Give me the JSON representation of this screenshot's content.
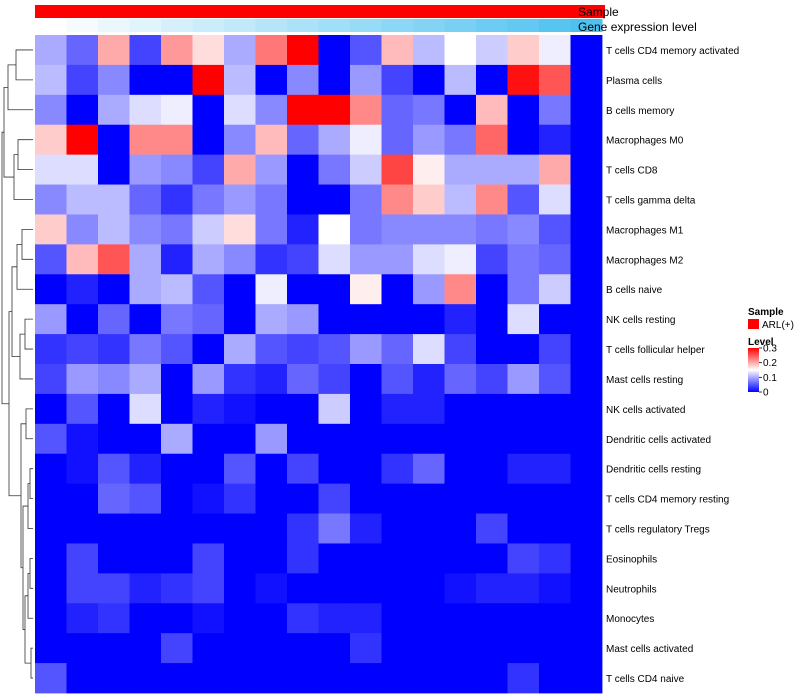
{
  "chart_data": {
    "type": "heatmap",
    "annotation_tracks": [
      {
        "name": "Sample",
        "colors_hint": "red track",
        "legend_title": "Sample",
        "legend_item": "ARL(+)",
        "color": "#ff0000"
      },
      {
        "name": "Gene expression level",
        "color_from": "#ffffff",
        "color_to": "#4ec1f0"
      }
    ],
    "legend": {
      "title": "Level",
      "ticks": [
        "0.3",
        "0.2",
        "0.1",
        "0"
      ],
      "tick_values": [
        0.3,
        0.2,
        0.1,
        0
      ],
      "min": 0,
      "max": 0.3,
      "colors": {
        "low": "#0000ff",
        "mid": "#ffffff",
        "high": "#ff0000"
      }
    },
    "rows": [
      "T cells CD4 memory activated",
      "Plasma cells",
      "B cells memory",
      "Macrophages M0",
      "T cells CD8",
      "T cells gamma delta",
      "Macrophages M1",
      "Macrophages M2",
      "B cells naive",
      "NK cells resting",
      "T cells follicular helper",
      "Mast cells resting",
      "NK cells activated",
      "Dendritic cells activated",
      "Dendritic cells resting",
      "T cells CD4 memory resting",
      "T cells regulatory  Tregs",
      "Eosinophils",
      "Neutrophils",
      "Monocytes",
      "Mast cells activated",
      "T cells CD4 naive"
    ],
    "n_samples": 18,
    "values": [
      [
        0.1,
        0.06,
        0.2,
        0.04,
        0.21,
        0.17,
        0.1,
        0.23,
        0.3,
        0.0,
        0.05,
        0.19,
        0.11,
        0.15,
        0.12,
        0.18,
        0.14,
        0.0
      ],
      [
        0.11,
        0.04,
        0.08,
        0.0,
        0.0,
        0.3,
        0.11,
        0.0,
        0.08,
        0.0,
        0.09,
        0.04,
        0.0,
        0.11,
        0.0,
        0.29,
        0.25,
        0.0
      ],
      [
        0.08,
        0.0,
        0.1,
        0.13,
        0.14,
        0.0,
        0.13,
        0.08,
        0.3,
        0.3,
        0.22,
        0.06,
        0.07,
        0.0,
        0.19,
        0.0,
        0.07,
        0.0
      ],
      [
        0.18,
        0.3,
        0.0,
        0.22,
        0.22,
        0.0,
        0.08,
        0.19,
        0.06,
        0.1,
        0.14,
        0.06,
        0.09,
        0.07,
        0.24,
        0.0,
        0.02,
        0.0
      ],
      [
        0.13,
        0.13,
        0.0,
        0.09,
        0.08,
        0.04,
        0.2,
        0.09,
        0.0,
        0.07,
        0.12,
        0.26,
        0.16,
        0.1,
        0.1,
        0.1,
        0.2,
        0.0
      ],
      [
        0.08,
        0.11,
        0.11,
        0.06,
        0.03,
        0.07,
        0.09,
        0.07,
        0.0,
        0.0,
        0.07,
        0.22,
        0.18,
        0.11,
        0.22,
        0.05,
        0.13,
        0.0
      ],
      [
        0.18,
        0.08,
        0.11,
        0.08,
        0.07,
        0.12,
        0.17,
        0.07,
        0.02,
        0.15,
        0.07,
        0.08,
        0.08,
        0.08,
        0.07,
        0.08,
        0.05,
        0.0
      ],
      [
        0.05,
        0.19,
        0.25,
        0.1,
        0.02,
        0.1,
        0.08,
        0.03,
        0.04,
        0.13,
        0.09,
        0.09,
        0.13,
        0.14,
        0.04,
        0.07,
        0.06,
        0.0
      ],
      [
        0.0,
        0.02,
        0.0,
        0.1,
        0.11,
        0.05,
        0.0,
        0.14,
        0.0,
        0.0,
        0.16,
        0.0,
        0.09,
        0.22,
        0.0,
        0.07,
        0.12,
        0.0
      ],
      [
        0.09,
        0.0,
        0.06,
        0.0,
        0.07,
        0.06,
        0.0,
        0.1,
        0.09,
        0.0,
        0.0,
        0.0,
        0.0,
        0.02,
        0.0,
        0.13,
        0.0,
        0.0
      ],
      [
        0.03,
        0.04,
        0.03,
        0.07,
        0.05,
        0.0,
        0.1,
        0.05,
        0.04,
        0.05,
        0.09,
        0.06,
        0.13,
        0.04,
        0.0,
        0.0,
        0.04,
        0.0
      ],
      [
        0.04,
        0.09,
        0.08,
        0.1,
        0.0,
        0.09,
        0.03,
        0.02,
        0.06,
        0.04,
        0.0,
        0.05,
        0.02,
        0.06,
        0.04,
        0.09,
        0.05,
        0.0
      ],
      [
        0.0,
        0.05,
        0.0,
        0.13,
        0.0,
        0.02,
        0.01,
        0.0,
        0.0,
        0.12,
        0.0,
        0.02,
        0.02,
        0.0,
        0.0,
        0.0,
        0.0,
        0.0
      ],
      [
        0.05,
        0.01,
        0.0,
        0.0,
        0.1,
        0.0,
        0.0,
        0.09,
        0.0,
        0.0,
        0.0,
        0.0,
        0.0,
        0.0,
        0.0,
        0.0,
        0.0,
        0.0
      ],
      [
        0.0,
        0.01,
        0.05,
        0.02,
        0.0,
        0.0,
        0.05,
        0.0,
        0.04,
        0.0,
        0.0,
        0.03,
        0.06,
        0.0,
        0.0,
        0.02,
        0.02,
        0.0
      ],
      [
        0.0,
        0.0,
        0.06,
        0.05,
        0.0,
        0.01,
        0.03,
        0.0,
        0.0,
        0.04,
        0.0,
        0.0,
        0.0,
        0.0,
        0.0,
        0.0,
        0.0,
        0.0
      ],
      [
        0.0,
        0.0,
        0.0,
        0.0,
        0.0,
        0.0,
        0.0,
        0.0,
        0.03,
        0.07,
        0.02,
        0.0,
        0.0,
        0.0,
        0.04,
        0.0,
        0.0,
        0.0
      ],
      [
        0.0,
        0.04,
        0.0,
        0.0,
        0.0,
        0.04,
        0.0,
        0.0,
        0.03,
        0.0,
        0.0,
        0.0,
        0.0,
        0.0,
        0.0,
        0.04,
        0.03,
        0.0
      ],
      [
        0.0,
        0.04,
        0.04,
        0.02,
        0.03,
        0.04,
        0.0,
        0.01,
        0.0,
        0.0,
        0.0,
        0.0,
        0.0,
        0.01,
        0.02,
        0.02,
        0.01,
        0.0
      ],
      [
        0.0,
        0.02,
        0.03,
        0.0,
        0.0,
        0.01,
        0.0,
        0.0,
        0.03,
        0.02,
        0.02,
        0.0,
        0.0,
        0.0,
        0.0,
        0.0,
        0.0,
        0.0
      ],
      [
        0.0,
        0.0,
        0.0,
        0.0,
        0.04,
        0.0,
        0.0,
        0.0,
        0.0,
        0.0,
        0.03,
        0.0,
        0.0,
        0.0,
        0.0,
        0.0,
        0.0,
        0.0
      ],
      [
        0.05,
        0.0,
        0.0,
        0.0,
        0.0,
        0.0,
        0.0,
        0.0,
        0.0,
        0.0,
        0.0,
        0.0,
        0.0,
        0.0,
        0.0,
        0.03,
        0.0,
        0.0
      ]
    ]
  }
}
